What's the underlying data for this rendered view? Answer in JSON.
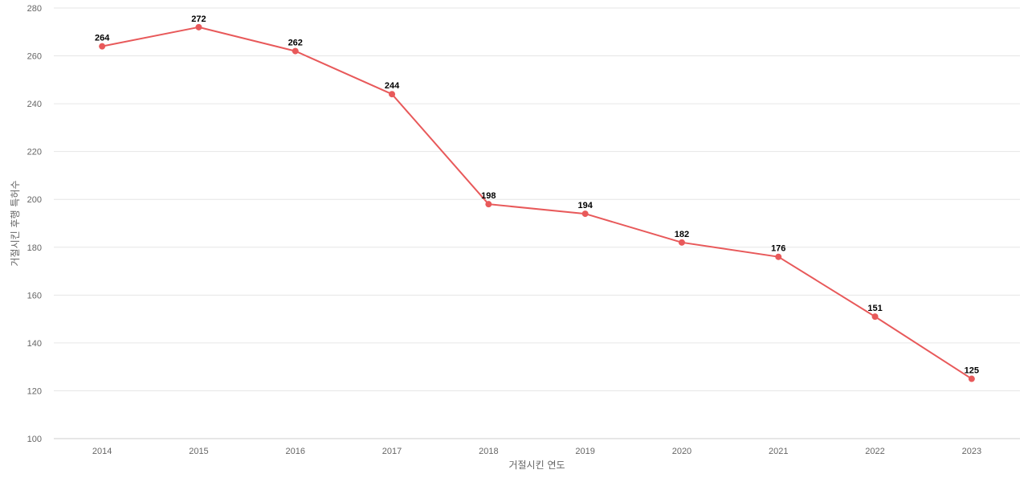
{
  "chart_data": {
    "type": "line",
    "title": "",
    "xlabel": "거절시킨 연도",
    "ylabel": "거절시킨 후행 특허수",
    "categories": [
      "2014",
      "2015",
      "2016",
      "2017",
      "2018",
      "2019",
      "2020",
      "2021",
      "2022",
      "2023"
    ],
    "series": [
      {
        "values": [
          264,
          272,
          262,
          244,
          198,
          194,
          182,
          176,
          151,
          125
        ]
      }
    ],
    "ylim": [
      100,
      280
    ],
    "yticks": [
      100,
      120,
      140,
      160,
      180,
      200,
      220,
      240,
      260,
      280
    ],
    "grid": true,
    "legend": "none",
    "data_labels": true,
    "colors": {
      "series": "#e8595a",
      "grid": "#e6e6e6",
      "text": "#666666"
    }
  }
}
